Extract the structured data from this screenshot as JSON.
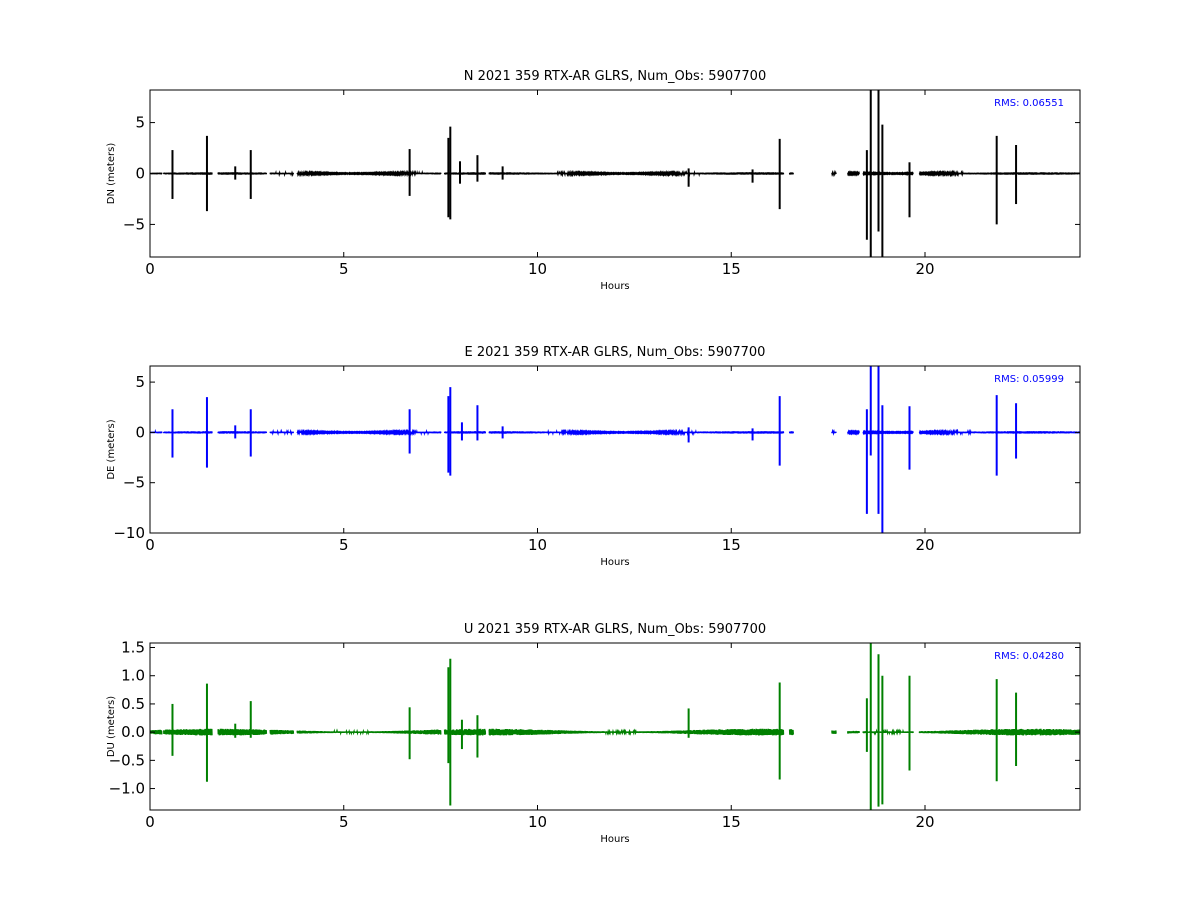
{
  "chart_data": [
    {
      "type": "line",
      "title": "N 2021 359 RTX-AR  GLRS, Num_Obs: 5907700",
      "xlabel": "Hours",
      "ylabel": "DN (meters)",
      "xlim": [
        0,
        24
      ],
      "ylim": [
        -8.2,
        8.2
      ],
      "xticks": [
        0,
        5,
        10,
        15,
        20
      ],
      "yticks": [
        -5,
        0,
        5
      ],
      "grid": false,
      "color": "#000000",
      "annotation": "RMS:  0.06551",
      "annotation_color": "#0000ff",
      "noise_amplitude": 0.12,
      "gaps": [
        [
          0.3,
          0.35
        ],
        [
          1.6,
          1.75
        ],
        [
          3.0,
          3.1
        ],
        [
          3.7,
          3.8
        ],
        [
          7.5,
          7.6
        ],
        [
          8.65,
          8.75
        ],
        [
          16.35,
          16.5
        ],
        [
          16.6,
          17.6
        ],
        [
          17.7,
          18.0
        ],
        [
          18.3,
          18.4
        ],
        [
          19.7,
          19.85
        ]
      ],
      "spikes": [
        {
          "x": 0.58,
          "min": -2.5,
          "max": 2.3
        },
        {
          "x": 1.47,
          "min": -3.7,
          "max": 3.7
        },
        {
          "x": 2.2,
          "min": -0.6,
          "max": 0.7
        },
        {
          "x": 2.6,
          "min": -2.5,
          "max": 2.3
        },
        {
          "x": 6.7,
          "min": -2.2,
          "max": 2.4
        },
        {
          "x": 7.7,
          "min": -4.3,
          "max": 3.5
        },
        {
          "x": 7.75,
          "min": -4.5,
          "max": 4.6
        },
        {
          "x": 8.0,
          "min": -1.0,
          "max": 1.2
        },
        {
          "x": 8.45,
          "min": -0.8,
          "max": 1.8
        },
        {
          "x": 9.1,
          "min": -0.6,
          "max": 0.7
        },
        {
          "x": 13.9,
          "min": -1.3,
          "max": 0.5
        },
        {
          "x": 15.55,
          "min": -0.9,
          "max": 0.4
        },
        {
          "x": 16.25,
          "min": -3.5,
          "max": 3.4
        },
        {
          "x": 18.5,
          "min": -6.5,
          "max": 2.3
        },
        {
          "x": 18.6,
          "min": -8.2,
          "max": 8.2
        },
        {
          "x": 18.8,
          "min": -5.7,
          "max": 8.2
        },
        {
          "x": 18.9,
          "min": -8.2,
          "max": 4.8
        },
        {
          "x": 19.6,
          "min": -4.3,
          "max": 1.1
        },
        {
          "x": 21.85,
          "min": -5.0,
          "max": 3.7
        },
        {
          "x": 22.35,
          "min": -3.0,
          "max": 2.8
        }
      ]
    },
    {
      "type": "line",
      "title": "E 2021 359 RTX-AR  GLRS, Num_Obs: 5907700",
      "xlabel": "Hours",
      "ylabel": "DE (meters)",
      "xlim": [
        0,
        24
      ],
      "ylim": [
        -10,
        6.6
      ],
      "xticks": [
        0,
        5,
        10,
        15,
        20
      ],
      "yticks": [
        -10,
        -5,
        0,
        5
      ],
      "grid": false,
      "color": "#0000ff",
      "annotation": "RMS:  0.05999",
      "annotation_color": "#0000ff",
      "noise_amplitude": 0.12,
      "gaps": [
        [
          0.3,
          0.35
        ],
        [
          1.6,
          1.75
        ],
        [
          3.0,
          3.1
        ],
        [
          3.7,
          3.8
        ],
        [
          7.5,
          7.6
        ],
        [
          8.65,
          8.75
        ],
        [
          16.35,
          16.5
        ],
        [
          16.6,
          17.6
        ],
        [
          17.7,
          18.0
        ],
        [
          18.3,
          18.4
        ],
        [
          19.7,
          19.85
        ]
      ],
      "spikes": [
        {
          "x": 0.58,
          "min": -2.5,
          "max": 2.3
        },
        {
          "x": 1.47,
          "min": -3.5,
          "max": 3.5
        },
        {
          "x": 2.2,
          "min": -0.6,
          "max": 0.7
        },
        {
          "x": 2.6,
          "min": -2.4,
          "max": 2.3
        },
        {
          "x": 6.7,
          "min": -2.1,
          "max": 2.3
        },
        {
          "x": 7.7,
          "min": -4.0,
          "max": 3.6
        },
        {
          "x": 7.75,
          "min": -4.3,
          "max": 4.5
        },
        {
          "x": 8.05,
          "min": -0.8,
          "max": 1.0
        },
        {
          "x": 8.45,
          "min": -0.8,
          "max": 2.7
        },
        {
          "x": 9.1,
          "min": -0.6,
          "max": 0.6
        },
        {
          "x": 13.9,
          "min": -1.0,
          "max": 0.5
        },
        {
          "x": 15.55,
          "min": -0.8,
          "max": 0.4
        },
        {
          "x": 16.25,
          "min": -3.3,
          "max": 3.6
        },
        {
          "x": 18.5,
          "min": -8.1,
          "max": 2.3
        },
        {
          "x": 18.6,
          "min": -2.3,
          "max": 6.6
        },
        {
          "x": 18.8,
          "min": -8.1,
          "max": 6.6
        },
        {
          "x": 18.9,
          "min": -10,
          "max": 2.7
        },
        {
          "x": 19.6,
          "min": -3.7,
          "max": 2.6
        },
        {
          "x": 21.85,
          "min": -4.3,
          "max": 3.7
        },
        {
          "x": 22.35,
          "min": -2.6,
          "max": 2.9
        }
      ]
    },
    {
      "type": "line",
      "title": "U 2021 359 RTX-AR  GLRS, Num_Obs: 5907700",
      "xlabel": "Hours",
      "ylabel": "DU (meters)",
      "xlim": [
        0,
        24
      ],
      "ylim": [
        -1.38,
        1.58
      ],
      "xticks": [
        0,
        5,
        10,
        15,
        20
      ],
      "yticks": [
        -1.0,
        -0.5,
        0.0,
        0.5,
        1.0,
        1.5
      ],
      "grid": false,
      "color": "#008000",
      "annotation": "RMS:  0.04280",
      "annotation_color": "#0000ff",
      "noise_amplitude": 0.06,
      "gaps": [
        [
          0.3,
          0.35
        ],
        [
          1.6,
          1.75
        ],
        [
          3.0,
          3.1
        ],
        [
          3.7,
          3.8
        ],
        [
          7.5,
          7.6
        ],
        [
          8.65,
          8.75
        ],
        [
          16.35,
          16.5
        ],
        [
          16.6,
          17.6
        ],
        [
          17.7,
          18.0
        ],
        [
          18.3,
          18.4
        ],
        [
          19.7,
          19.85
        ]
      ],
      "spikes": [
        {
          "x": 0.58,
          "min": -0.42,
          "max": 0.5
        },
        {
          "x": 1.47,
          "min": -0.88,
          "max": 0.86
        },
        {
          "x": 2.2,
          "min": -0.1,
          "max": 0.15
        },
        {
          "x": 2.6,
          "min": -0.1,
          "max": 0.55
        },
        {
          "x": 6.7,
          "min": -0.48,
          "max": 0.44
        },
        {
          "x": 7.7,
          "min": -0.55,
          "max": 1.15
        },
        {
          "x": 7.75,
          "min": -1.3,
          "max": 1.3
        },
        {
          "x": 8.05,
          "min": -0.3,
          "max": 0.22
        },
        {
          "x": 8.45,
          "min": -0.45,
          "max": 0.3
        },
        {
          "x": 13.9,
          "min": -0.1,
          "max": 0.42
        },
        {
          "x": 16.25,
          "min": -0.84,
          "max": 0.88
        },
        {
          "x": 18.5,
          "min": -0.35,
          "max": 0.6
        },
        {
          "x": 18.6,
          "min": -1.38,
          "max": 1.58
        },
        {
          "x": 18.8,
          "min": -1.32,
          "max": 1.38
        },
        {
          "x": 18.9,
          "min": -1.28,
          "max": 1.0
        },
        {
          "x": 19.6,
          "min": -0.68,
          "max": 1.0
        },
        {
          "x": 21.85,
          "min": -0.87,
          "max": 0.94
        },
        {
          "x": 22.35,
          "min": -0.6,
          "max": 0.7
        }
      ]
    }
  ]
}
